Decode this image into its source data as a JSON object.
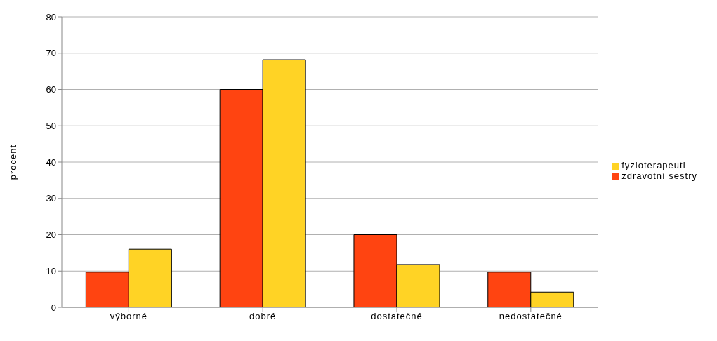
{
  "chart_data": {
    "type": "bar",
    "ylabel": "procent",
    "categories": [
      "výborné",
      "dobré",
      "dostatečné",
      "nedostatečné"
    ],
    "series": [
      {
        "name": "zdravotní sestry",
        "color": "#ff4411",
        "values": [
          9.7,
          60,
          20,
          9.7
        ]
      },
      {
        "name": "fyzioterapeuti",
        "color": "#ffd325",
        "values": [
          16,
          68.2,
          11.8,
          4.2
        ]
      }
    ],
    "ylim": [
      0,
      80
    ],
    "yticks": [
      0,
      10,
      20,
      30,
      40,
      50,
      60,
      70,
      80
    ],
    "grid": "y",
    "legend": "right"
  }
}
